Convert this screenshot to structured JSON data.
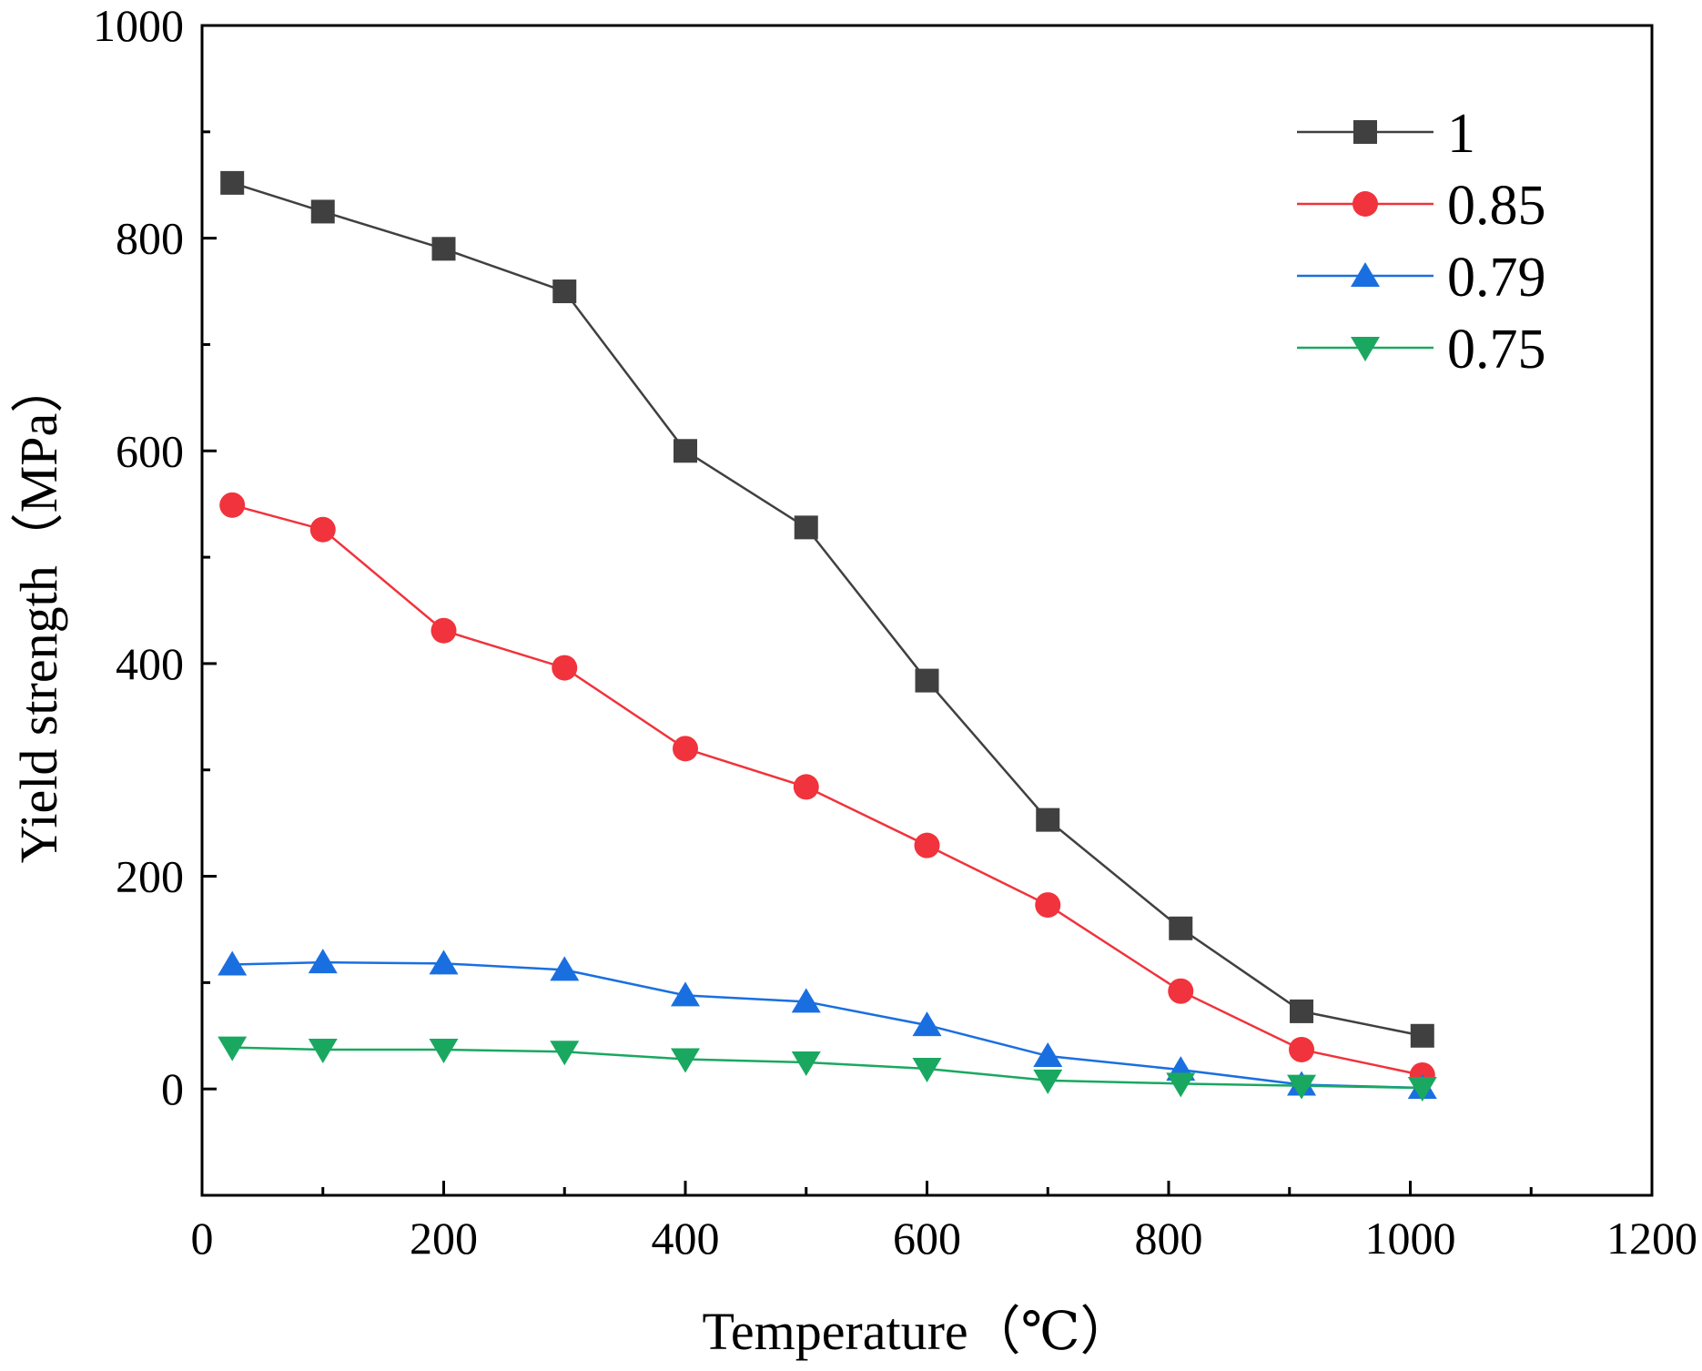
{
  "chart_data": {
    "type": "line",
    "title": "",
    "xlabel": "Temperature（℃）",
    "ylabel": "Yield strength（MPa）",
    "xlim": [
      0,
      1200
    ],
    "ylim": [
      -100,
      1000
    ],
    "xticks": [
      0,
      200,
      400,
      600,
      800,
      1000,
      1200
    ],
    "yticks": [
      0,
      200,
      400,
      600,
      800,
      1000
    ],
    "grid": false,
    "legend_position": "top-right",
    "x": [
      25,
      100,
      200,
      300,
      400,
      500,
      600,
      700,
      810,
      910,
      1010
    ],
    "series": [
      {
        "name": "1",
        "marker": "square",
        "color": "#404040",
        "values": [
          852,
          825,
          790,
          750,
          600,
          528,
          384,
          253,
          151,
          73,
          50
        ]
      },
      {
        "name": "0.85",
        "marker": "circle",
        "color": "#f0333c",
        "values": [
          549,
          526,
          431,
          396,
          320,
          284,
          229,
          173,
          92,
          37,
          13
        ]
      },
      {
        "name": "0.79",
        "marker": "triangle-up",
        "color": "#1a6fe0",
        "values": [
          117,
          119,
          118,
          112,
          88,
          82,
          60,
          31,
          18,
          4,
          1
        ]
      },
      {
        "name": "0.75",
        "marker": "triangle-down",
        "color": "#1aa860",
        "values": [
          39,
          37,
          37,
          35,
          28,
          25,
          19,
          8,
          5,
          3,
          1
        ]
      }
    ]
  }
}
